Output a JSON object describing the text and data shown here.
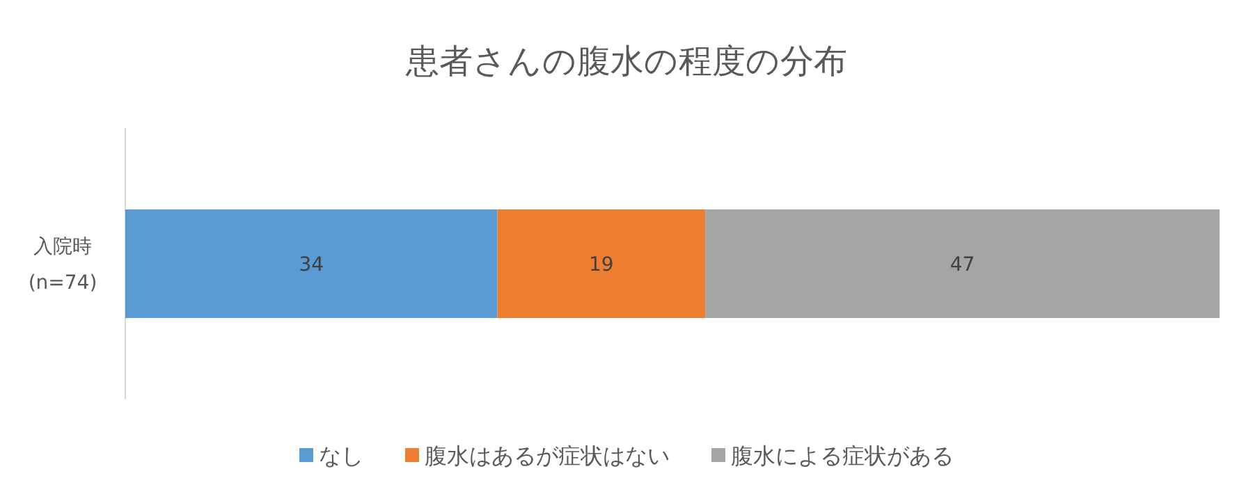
{
  "chart_data": {
    "type": "bar",
    "title": "患者さんの腹水の程度の分布",
    "orientation": "horizontal",
    "stacked": true,
    "categories": [
      "入院時\n(n=74)"
    ],
    "series": [
      {
        "name": "なし",
        "color": "#5b9bd5",
        "values": [
          34
        ]
      },
      {
        "name": "腹水はあるが症状はない",
        "color": "#ed7d31",
        "values": [
          19
        ]
      },
      {
        "name": "腹水による症状がある",
        "color": "#a5a5a5",
        "values": [
          47
        ]
      }
    ],
    "xlim": [
      0,
      100
    ],
    "tick_labels": "y",
    "data_labels": true,
    "legend": "bottom"
  }
}
